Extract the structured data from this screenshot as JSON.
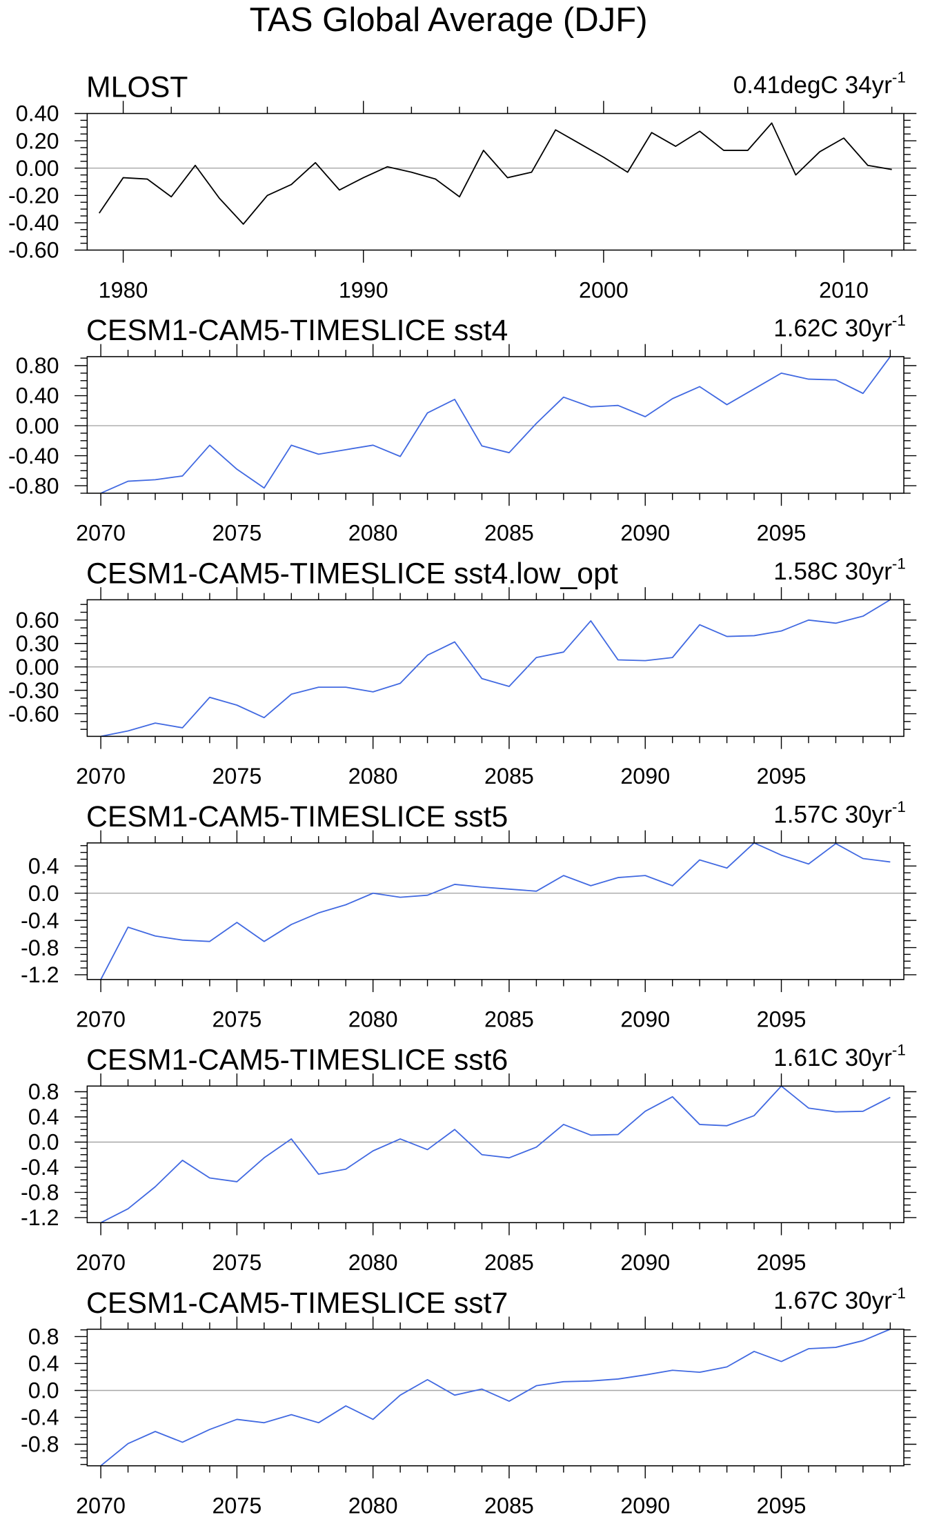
{
  "title": "TAS Global Average (DJF)",
  "chart_data": [
    {
      "type": "line",
      "title": "MLOST",
      "trend_label": "0.41degC 34yr",
      "trend_exponent": "-1",
      "color": "#000000",
      "zero_line_color": "#a6a6a6",
      "x": [
        1979,
        1980,
        1981,
        1982,
        1983,
        1984,
        1985,
        1986,
        1987,
        1988,
        1989,
        1990,
        1991,
        1992,
        1993,
        1994,
        1995,
        1996,
        1997,
        1998,
        1999,
        2000,
        2001,
        2002,
        2003,
        2004,
        2005,
        2006,
        2007,
        2008,
        2009,
        2010,
        2011,
        2012
      ],
      "values": [
        -0.33,
        -0.07,
        -0.08,
        -0.21,
        0.02,
        -0.22,
        -0.41,
        -0.2,
        -0.12,
        0.04,
        -0.16,
        -0.07,
        0.01,
        -0.03,
        -0.08,
        -0.21,
        0.13,
        -0.07,
        -0.03,
        0.28,
        0.18,
        0.08,
        -0.03,
        0.26,
        0.16,
        0.27,
        0.13,
        0.13,
        0.33,
        -0.05,
        0.12,
        0.22,
        0.02,
        -0.01
      ],
      "xlim": [
        1978.5,
        2012.5
      ],
      "ylim": [
        -0.6,
        0.4
      ],
      "xticks": [
        1980,
        1990,
        2000,
        2010
      ],
      "xtick_minor_step": 2,
      "yticks": [
        0.4,
        0.2,
        0.0,
        -0.2,
        -0.4,
        -0.6
      ],
      "ytick_labels": [
        "0.40",
        "0.20",
        "0.00",
        "-0.20",
        "-0.40",
        "-0.60"
      ],
      "ytick_minor_step": 0.05,
      "grid": false
    },
    {
      "type": "line",
      "title": "CESM1-CAM5-TIMESLICE sst4",
      "trend_label": "1.62C 30yr",
      "trend_exponent": "-1",
      "color": "#4169e1",
      "zero_line_color": "#a6a6a6",
      "x": [
        2070,
        2071,
        2072,
        2073,
        2074,
        2075,
        2076,
        2077,
        2078,
        2079,
        2080,
        2081,
        2082,
        2083,
        2084,
        2085,
        2086,
        2087,
        2088,
        2089,
        2090,
        2091,
        2092,
        2093,
        2094,
        2095,
        2096,
        2097,
        2098,
        2099
      ],
      "values": [
        -0.9,
        -0.74,
        -0.72,
        -0.67,
        -0.26,
        -0.58,
        -0.83,
        -0.26,
        -0.38,
        -0.32,
        -0.26,
        -0.41,
        0.17,
        0.35,
        -0.27,
        -0.36,
        0.03,
        0.38,
        0.25,
        0.27,
        0.12,
        0.36,
        0.52,
        0.28,
        0.49,
        0.7,
        0.62,
        0.61,
        0.43,
        0.92
      ],
      "xlim": [
        2069.5,
        2099.5
      ],
      "ylim": [
        -0.9,
        0.92
      ],
      "xticks": [
        2070,
        2075,
        2080,
        2085,
        2090,
        2095
      ],
      "xtick_minor_step": 1,
      "yticks": [
        0.8,
        0.4,
        0.0,
        -0.4,
        -0.8
      ],
      "ytick_labels": [
        "0.80",
        "0.40",
        "0.00",
        "-0.40",
        "-0.80"
      ],
      "ytick_minor_step": 0.1,
      "grid": false
    },
    {
      "type": "line",
      "title": "CESM1-CAM5-TIMESLICE sst4.low_opt",
      "trend_label": "1.58C 30yr",
      "trend_exponent": "-1",
      "color": "#4169e1",
      "zero_line_color": "#a6a6a6",
      "x": [
        2070,
        2071,
        2072,
        2073,
        2074,
        2075,
        2076,
        2077,
        2078,
        2079,
        2080,
        2081,
        2082,
        2083,
        2084,
        2085,
        2086,
        2087,
        2088,
        2089,
        2090,
        2091,
        2092,
        2093,
        2094,
        2095,
        2096,
        2097,
        2098,
        2099
      ],
      "values": [
        -0.89,
        -0.82,
        -0.72,
        -0.78,
        -0.39,
        -0.49,
        -0.65,
        -0.35,
        -0.26,
        -0.26,
        -0.32,
        -0.21,
        0.15,
        0.32,
        -0.15,
        -0.25,
        0.12,
        0.19,
        0.59,
        0.09,
        0.08,
        0.12,
        0.54,
        0.39,
        0.4,
        0.46,
        0.6,
        0.56,
        0.65,
        0.86
      ],
      "xlim": [
        2069.5,
        2099.5
      ],
      "ylim": [
        -0.89,
        0.86
      ],
      "xticks": [
        2070,
        2075,
        2080,
        2085,
        2090,
        2095
      ],
      "xtick_minor_step": 1,
      "yticks": [
        0.6,
        0.3,
        0.0,
        -0.3,
        -0.6
      ],
      "ytick_labels": [
        "0.60",
        "0.30",
        "0.00",
        "-0.30",
        "-0.60"
      ],
      "ytick_minor_step": 0.1,
      "grid": false
    },
    {
      "type": "line",
      "title": "CESM1-CAM5-TIMESLICE sst5",
      "trend_label": "1.57C 30yr",
      "trend_exponent": "-1",
      "color": "#4169e1",
      "zero_line_color": "#a6a6a6",
      "x": [
        2070,
        2071,
        2072,
        2073,
        2074,
        2075,
        2076,
        2077,
        2078,
        2079,
        2080,
        2081,
        2082,
        2083,
        2084,
        2085,
        2086,
        2087,
        2088,
        2089,
        2090,
        2091,
        2092,
        2093,
        2094,
        2095,
        2096,
        2097,
        2098,
        2099
      ],
      "values": [
        -1.27,
        -0.5,
        -0.63,
        -0.69,
        -0.71,
        -0.43,
        -0.71,
        -0.46,
        -0.29,
        -0.17,
        0.0,
        -0.06,
        -0.03,
        0.13,
        0.09,
        0.06,
        0.03,
        0.26,
        0.11,
        0.23,
        0.26,
        0.11,
        0.49,
        0.37,
        0.74,
        0.56,
        0.43,
        0.73,
        0.51,
        0.46
      ],
      "xlim": [
        2069.5,
        2099.5
      ],
      "ylim": [
        -1.27,
        0.74
      ],
      "xticks": [
        2070,
        2075,
        2080,
        2085,
        2090,
        2095
      ],
      "xtick_minor_step": 1,
      "yticks": [
        0.4,
        0.0,
        -0.4,
        -0.8,
        -1.2
      ],
      "ytick_labels": [
        "0.4",
        "0.0",
        "-0.4",
        "-0.8",
        "-1.2"
      ],
      "ytick_minor_step": 0.1,
      "grid": false
    },
    {
      "type": "line",
      "title": "CESM1-CAM5-TIMESLICE sst6",
      "trend_label": "1.61C 30yr",
      "trend_exponent": "-1",
      "color": "#4169e1",
      "zero_line_color": "#a6a6a6",
      "x": [
        2070,
        2071,
        2072,
        2073,
        2074,
        2075,
        2076,
        2077,
        2078,
        2079,
        2080,
        2081,
        2082,
        2083,
        2084,
        2085,
        2086,
        2087,
        2088,
        2089,
        2090,
        2091,
        2092,
        2093,
        2094,
        2095,
        2096,
        2097,
        2098,
        2099
      ],
      "values": [
        -1.28,
        -1.06,
        -0.71,
        -0.29,
        -0.57,
        -0.63,
        -0.25,
        0.05,
        -0.51,
        -0.43,
        -0.14,
        0.05,
        -0.12,
        0.2,
        -0.2,
        -0.25,
        -0.08,
        0.28,
        0.11,
        0.12,
        0.49,
        0.72,
        0.28,
        0.26,
        0.42,
        0.89,
        0.54,
        0.48,
        0.49,
        0.71
      ],
      "xlim": [
        2069.5,
        2099.5
      ],
      "ylim": [
        -1.28,
        0.89
      ],
      "xticks": [
        2070,
        2075,
        2080,
        2085,
        2090,
        2095
      ],
      "xtick_minor_step": 1,
      "yticks": [
        0.8,
        0.4,
        0.0,
        -0.4,
        -0.8,
        -1.2
      ],
      "ytick_labels": [
        "0.8",
        "0.4",
        "0.0",
        "-0.4",
        "-0.8",
        "-1.2"
      ],
      "ytick_minor_step": 0.1,
      "grid": false
    },
    {
      "type": "line",
      "title": "CESM1-CAM5-TIMESLICE sst7",
      "trend_label": "1.67C 30yr",
      "trend_exponent": "-1",
      "color": "#4169e1",
      "zero_line_color": "#a6a6a6",
      "x": [
        2070,
        2071,
        2072,
        2073,
        2074,
        2075,
        2076,
        2077,
        2078,
        2079,
        2080,
        2081,
        2082,
        2083,
        2084,
        2085,
        2086,
        2087,
        2088,
        2089,
        2090,
        2091,
        2092,
        2093,
        2094,
        2095,
        2096,
        2097,
        2098,
        2099
      ],
      "values": [
        -1.12,
        -0.79,
        -0.61,
        -0.77,
        -0.58,
        -0.43,
        -0.48,
        -0.36,
        -0.48,
        -0.23,
        -0.43,
        -0.07,
        0.16,
        -0.07,
        0.02,
        -0.16,
        0.07,
        0.13,
        0.14,
        0.17,
        0.23,
        0.3,
        0.27,
        0.35,
        0.58,
        0.43,
        0.62,
        0.64,
        0.74,
        0.91
      ],
      "xlim": [
        2069.5,
        2099.5
      ],
      "ylim": [
        -1.12,
        0.91
      ],
      "xticks": [
        2070,
        2075,
        2080,
        2085,
        2090,
        2095
      ],
      "xtick_minor_step": 1,
      "yticks": [
        0.8,
        0.4,
        0.0,
        -0.4,
        -0.8
      ],
      "ytick_labels": [
        "0.8",
        "0.4",
        "0.0",
        "-0.4",
        "-0.8"
      ],
      "ytick_minor_step": 0.1,
      "grid": false
    }
  ]
}
